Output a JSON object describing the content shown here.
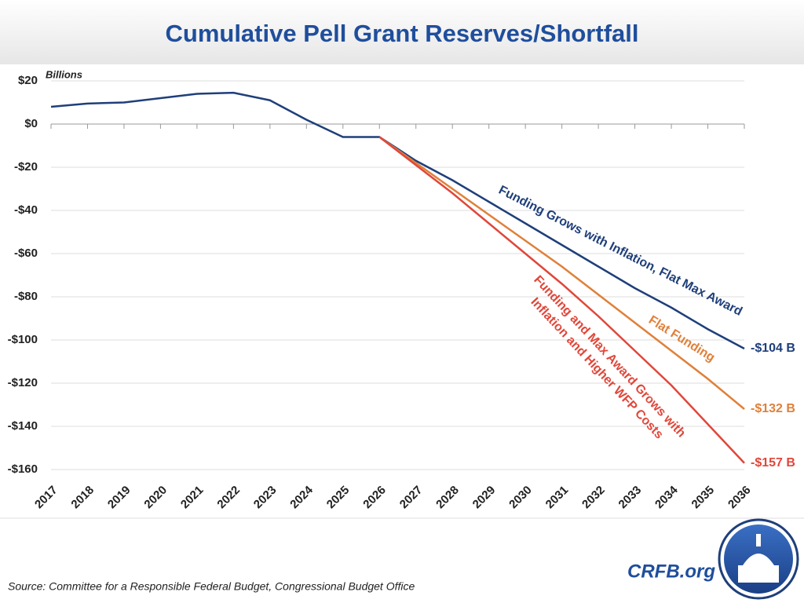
{
  "chart_data": {
    "type": "line",
    "title": "Cumulative Pell Grant Reserves/Shortfall",
    "y_unit": "Billions",
    "source": "Source: Committee for a Responsible Federal Budget, Congressional Budget Office",
    "brand": "CRFB.org",
    "categories": [
      "2017",
      "2018",
      "2019",
      "2020",
      "2021",
      "2022",
      "2023",
      "2024",
      "2025",
      "2026",
      "2027",
      "2028",
      "2029",
      "2030",
      "2031",
      "2032",
      "2033",
      "2034",
      "2035",
      "2036"
    ],
    "ylim": [
      -160,
      20
    ],
    "yticks": [
      {
        "value": 20,
        "label": "$20"
      },
      {
        "value": 0,
        "label": "$0"
      },
      {
        "value": -20,
        "label": "-$20"
      },
      {
        "value": -40,
        "label": "-$40"
      },
      {
        "value": -60,
        "label": "-$60"
      },
      {
        "value": -80,
        "label": "-$80"
      },
      {
        "value": -100,
        "label": "-$100"
      },
      {
        "value": -120,
        "label": "-$120"
      },
      {
        "value": -140,
        "label": "-$140"
      },
      {
        "value": -160,
        "label": "-$160"
      }
    ],
    "grid": true,
    "series": [
      {
        "name": "Funding Grows with Inflation, Flat Max Award",
        "color": "#1f3f7a",
        "values": [
          8,
          9.5,
          10,
          12,
          14,
          14.5,
          11,
          2,
          -6,
          -6,
          -17,
          -26,
          -36,
          -46,
          -56,
          -66,
          -76,
          -85,
          -95,
          -104
        ],
        "value_labels": [
          null,
          null,
          null,
          null,
          null,
          null,
          null,
          null,
          null,
          null,
          null,
          null,
          null,
          null,
          null,
          null,
          null,
          null,
          null,
          "-$104 B"
        ]
      },
      {
        "name": "Flat Funding",
        "color": "#e0803a",
        "values": [
          null,
          null,
          null,
          null,
          null,
          null,
          null,
          null,
          null,
          -6,
          -18,
          -30,
          -42,
          -54,
          -66,
          -79,
          -92,
          -105,
          -118,
          -132
        ],
        "value_labels": [
          null,
          null,
          null,
          null,
          null,
          null,
          null,
          null,
          null,
          null,
          null,
          null,
          null,
          null,
          null,
          null,
          null,
          null,
          null,
          "-$132 B"
        ]
      },
      {
        "name": [
          "Funding and Max Award Grows with",
          "Inflation and Higher WFP Costs"
        ],
        "color": "#e0473a",
        "values": [
          null,
          null,
          null,
          null,
          null,
          null,
          null,
          null,
          null,
          -6,
          -19,
          -32,
          -46,
          -60,
          -74,
          -89,
          -105,
          -121,
          -139,
          -157
        ],
        "value_labels": [
          null,
          null,
          null,
          null,
          null,
          null,
          null,
          null,
          null,
          null,
          null,
          null,
          null,
          null,
          null,
          null,
          null,
          null,
          null,
          "-$157 B"
        ]
      }
    ]
  }
}
